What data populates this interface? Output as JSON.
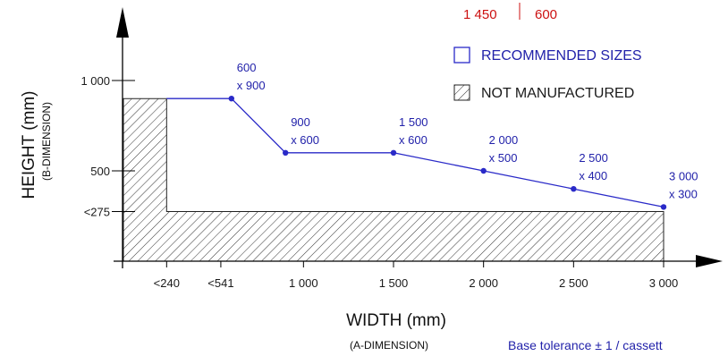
{
  "top_values": {
    "left": "1 450",
    "right": "600"
  },
  "legend": {
    "recommended": "RECOMMENDED SIZES",
    "not_manufactured": "NOT MANUFACTURED"
  },
  "tolerance": "Base tolerance ± 1 / cassett",
  "colors": {
    "series": "#2a2ac8",
    "top_values": "#cc1111",
    "axis": "#000000"
  },
  "chart_data": {
    "type": "line",
    "xlabel": "WIDTH (mm)",
    "xlabel_sub": "(A-DIMENSION)",
    "ylabel": "HEIGHT (mm)",
    "ylabel_sub": "(B-DIMENSION)",
    "xlim": [
      0,
      3150
    ],
    "ylim": [
      0,
      1100
    ],
    "x_ticks": [
      {
        "value": 240,
        "label": "<240"
      },
      {
        "value": 541,
        "label": "<541"
      },
      {
        "value": 1000,
        "label": "1 000"
      },
      {
        "value": 1500,
        "label": "1 500"
      },
      {
        "value": 2000,
        "label": "2 000"
      },
      {
        "value": 2500,
        "label": "2 500"
      },
      {
        "value": 3000,
        "label": "3 000"
      }
    ],
    "y_ticks": [
      {
        "value": 1000,
        "label": "1 000"
      },
      {
        "value": 500,
        "label": "500"
      },
      {
        "value": 275,
        "label": "<275"
      }
    ],
    "series": [
      {
        "name": "RECOMMENDED SIZES",
        "x": [
          240,
          600,
          900,
          1500,
          2000,
          2500,
          3000
        ],
        "y": [
          900,
          900,
          600,
          600,
          500,
          400,
          300
        ],
        "point_labels": [
          null,
          [
            "600",
            "x 900"
          ],
          [
            "900",
            "x 600"
          ],
          [
            "1 500",
            "x 600"
          ],
          [
            "2 000",
            "x 500"
          ],
          [
            "2 500",
            "x 400"
          ],
          [
            "3 000",
            "x 300"
          ]
        ]
      }
    ],
    "hatched_region": {
      "name": "NOT MANUFACTURED",
      "outline": [
        [
          0,
          0
        ],
        [
          0,
          900
        ],
        [
          240,
          900
        ],
        [
          240,
          275
        ],
        [
          3000,
          275
        ],
        [
          3000,
          0
        ]
      ]
    }
  }
}
